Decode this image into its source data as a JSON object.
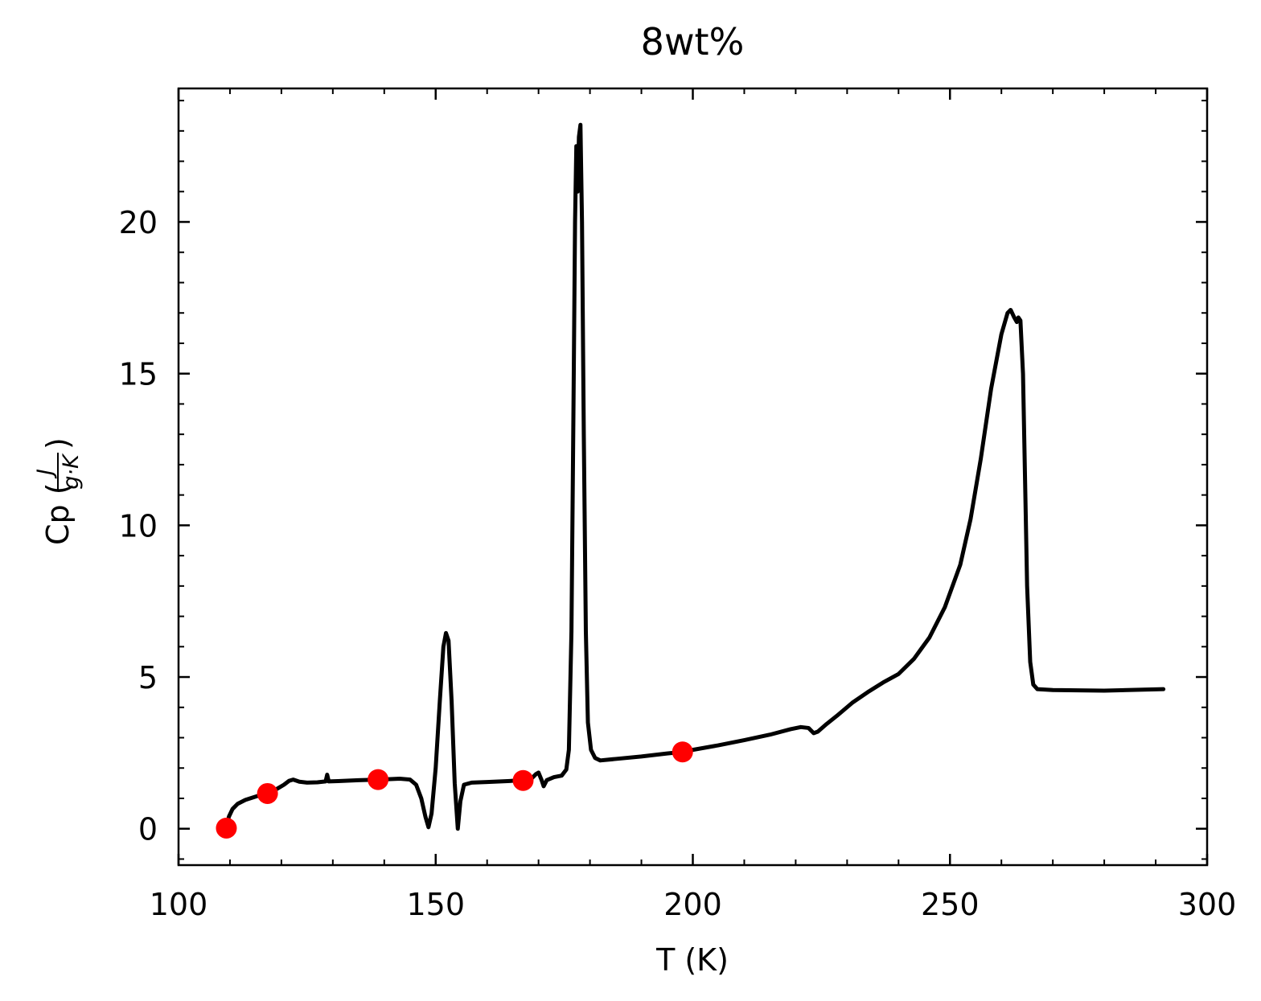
{
  "chart_data": {
    "type": "line",
    "title": "8wt%",
    "xlabel": "T (K)",
    "ylabel": {
      "prefix": "Cp (",
      "numerator": "J",
      "denominator": "g·K",
      "suffix": ")"
    },
    "xlim": [
      100,
      300
    ],
    "ylim": [
      -1.2,
      24.4
    ],
    "xticks": [
      100,
      150,
      200,
      250,
      300
    ],
    "yticks": [
      0,
      5,
      10,
      15,
      20
    ],
    "x_minor_step": 10,
    "y_minor_step": 1,
    "grid": false,
    "line_color": "#000000",
    "marker_color": "#ff0000",
    "series": [
      {
        "kind": "line",
        "points": [
          [
            109.2,
            0.0
          ],
          [
            109.8,
            0.4
          ],
          [
            110.5,
            0.65
          ],
          [
            111.5,
            0.82
          ],
          [
            113,
            0.95
          ],
          [
            115,
            1.06
          ],
          [
            117,
            1.16
          ],
          [
            119,
            1.3
          ],
          [
            120.5,
            1.45
          ],
          [
            121.5,
            1.58
          ],
          [
            122.3,
            1.62
          ],
          [
            123.5,
            1.55
          ],
          [
            125,
            1.52
          ],
          [
            127,
            1.53
          ],
          [
            128.6,
            1.56
          ],
          [
            128.9,
            1.78
          ],
          [
            129.2,
            1.56
          ],
          [
            131,
            1.57
          ],
          [
            135,
            1.6
          ],
          [
            139,
            1.62
          ],
          [
            143,
            1.65
          ],
          [
            145,
            1.62
          ],
          [
            146.2,
            1.45
          ],
          [
            147.2,
            1.0
          ],
          [
            148.0,
            0.4
          ],
          [
            148.6,
            0.05
          ],
          [
            149.2,
            0.5
          ],
          [
            150.0,
            2.0
          ],
          [
            150.8,
            4.2
          ],
          [
            151.5,
            6.0
          ],
          [
            152.0,
            6.45
          ],
          [
            152.5,
            6.2
          ],
          [
            153.1,
            4.2
          ],
          [
            153.7,
            1.5
          ],
          [
            154.3,
            0.0
          ],
          [
            154.8,
            0.9
          ],
          [
            155.5,
            1.45
          ],
          [
            157,
            1.52
          ],
          [
            160,
            1.54
          ],
          [
            164,
            1.57
          ],
          [
            167.1,
            1.6
          ],
          [
            168.5,
            1.63
          ],
          [
            169.5,
            1.8
          ],
          [
            170.0,
            1.85
          ],
          [
            170.6,
            1.6
          ],
          [
            171.0,
            1.4
          ],
          [
            171.6,
            1.6
          ],
          [
            173,
            1.7
          ],
          [
            174.5,
            1.75
          ],
          [
            175.4,
            1.95
          ],
          [
            175.9,
            2.6
          ],
          [
            176.4,
            6.5
          ],
          [
            176.8,
            14.0
          ],
          [
            177.1,
            20.0
          ],
          [
            177.35,
            22.5
          ],
          [
            177.6,
            21.0
          ],
          [
            177.85,
            22.8
          ],
          [
            178.15,
            23.2
          ],
          [
            178.45,
            20.0
          ],
          [
            178.8,
            13.0
          ],
          [
            179.2,
            6.5
          ],
          [
            179.6,
            3.5
          ],
          [
            180.2,
            2.6
          ],
          [
            181,
            2.33
          ],
          [
            182,
            2.25
          ],
          [
            185,
            2.3
          ],
          [
            190,
            2.38
          ],
          [
            195,
            2.48
          ],
          [
            198,
            2.53
          ],
          [
            200,
            2.6
          ],
          [
            205,
            2.75
          ],
          [
            210,
            2.92
          ],
          [
            215,
            3.1
          ],
          [
            219,
            3.28
          ],
          [
            221,
            3.35
          ],
          [
            222.5,
            3.32
          ],
          [
            223.5,
            3.15
          ],
          [
            224.3,
            3.2
          ],
          [
            226,
            3.45
          ],
          [
            228,
            3.72
          ],
          [
            231,
            4.15
          ],
          [
            234,
            4.5
          ],
          [
            237,
            4.82
          ],
          [
            240,
            5.1
          ],
          [
            243,
            5.6
          ],
          [
            246,
            6.3
          ],
          [
            249,
            7.3
          ],
          [
            252,
            8.7
          ],
          [
            254,
            10.2
          ],
          [
            256,
            12.2
          ],
          [
            258,
            14.5
          ],
          [
            260,
            16.3
          ],
          [
            261.2,
            17.0
          ],
          [
            261.8,
            17.1
          ],
          [
            262.5,
            16.85
          ],
          [
            263.0,
            16.7
          ],
          [
            263.3,
            16.85
          ],
          [
            263.7,
            16.75
          ],
          [
            264.2,
            15.0
          ],
          [
            264.6,
            11.5
          ],
          [
            265.0,
            8.0
          ],
          [
            265.6,
            5.5
          ],
          [
            266.2,
            4.75
          ],
          [
            267,
            4.6
          ],
          [
            270,
            4.57
          ],
          [
            280,
            4.55
          ],
          [
            291.5,
            4.6
          ]
        ]
      },
      {
        "kind": "scatter",
        "points": [
          [
            109.3,
            0.02
          ],
          [
            117.3,
            1.16
          ],
          [
            138.8,
            1.62
          ],
          [
            167.0,
            1.59
          ],
          [
            198.0,
            2.53
          ]
        ]
      }
    ]
  }
}
